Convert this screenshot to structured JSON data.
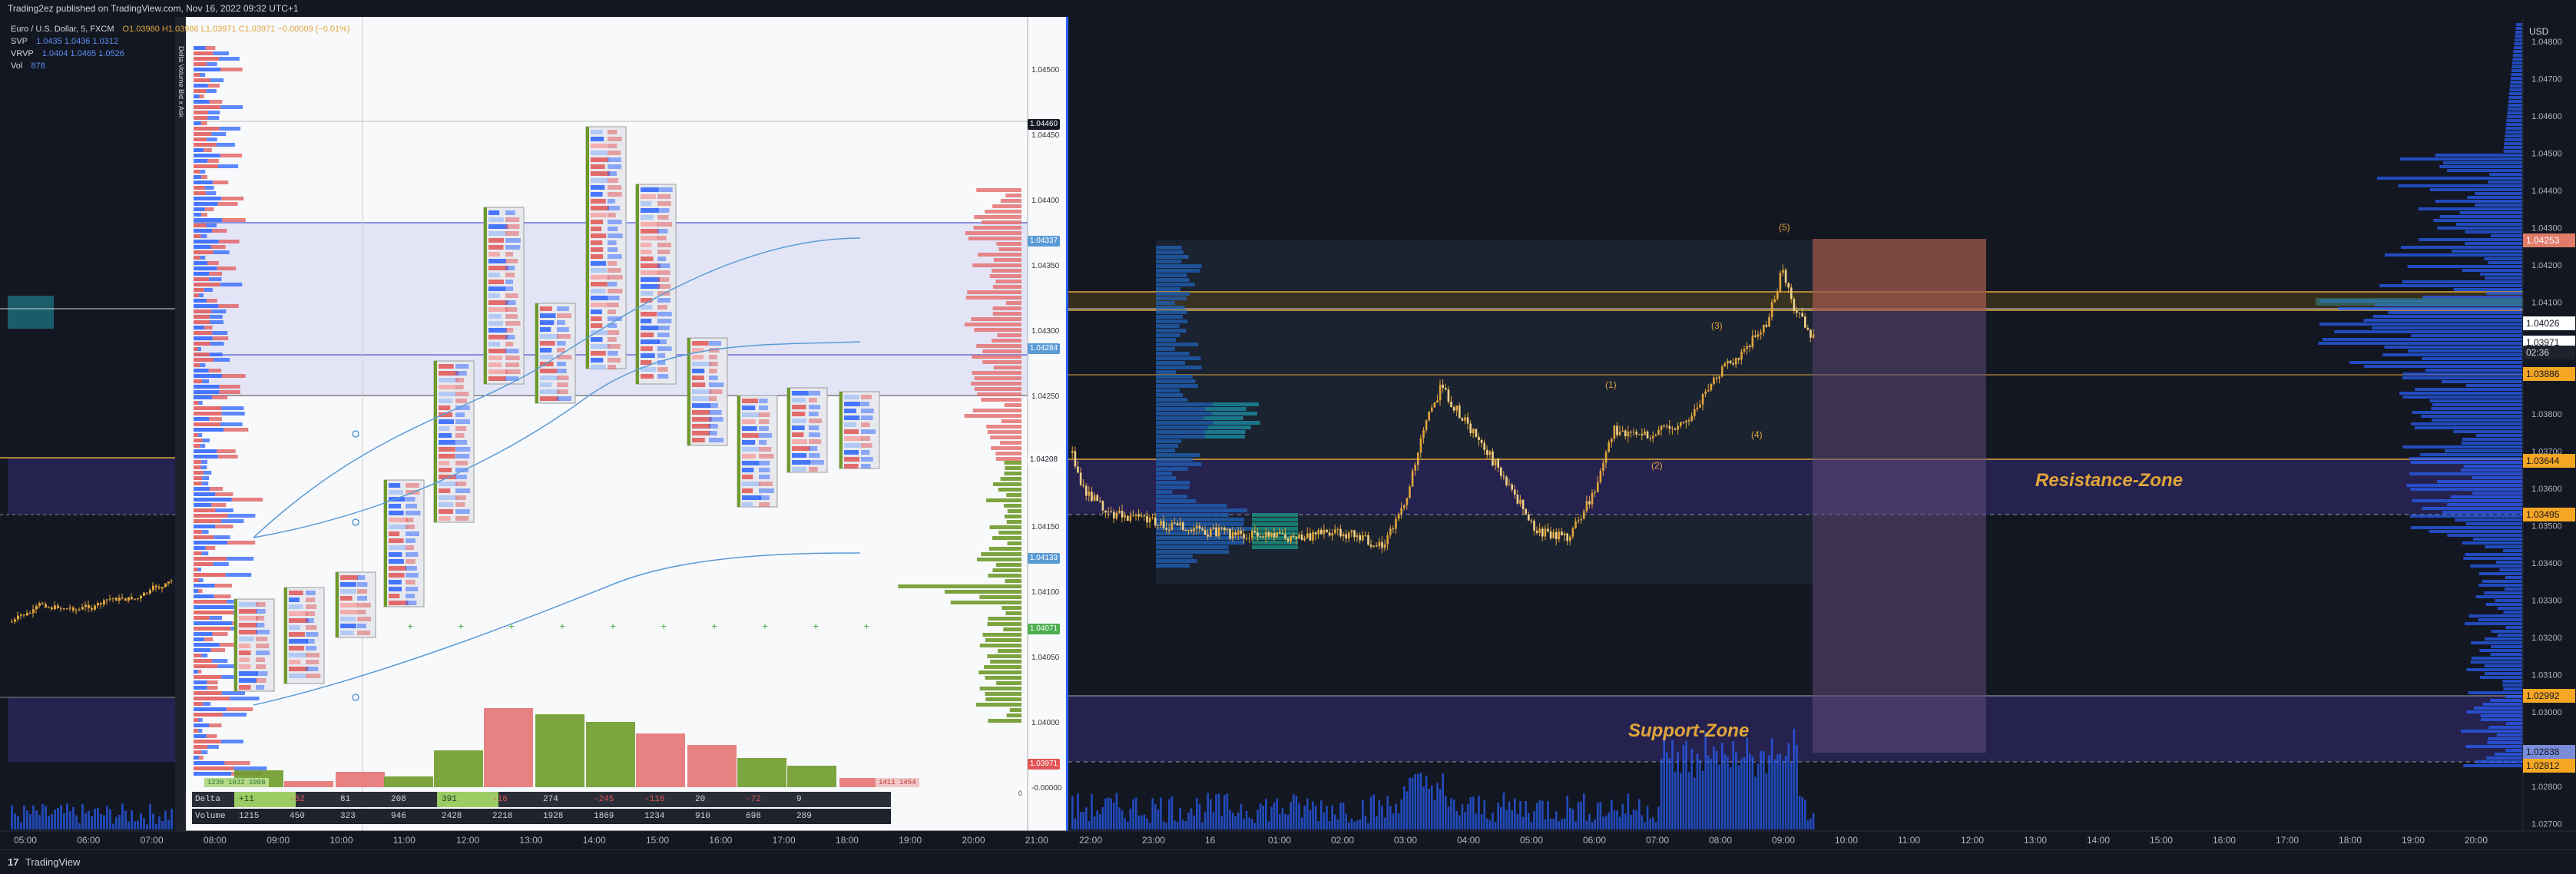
{
  "header": {
    "publish_line": "Trading2ez published on TradingView.com, Nov 16, 2022 09:32 UTC+1"
  },
  "legend": {
    "symbol": "Euro / U.S. Dollar, 5, FXCM",
    "ohlc": "O1.03980  H1.03986  L1.03971  C1.03971  −0.00009 (−0.01%)",
    "svp_label": "SVP",
    "svp_values": "1.0435  1.0436  1.0312",
    "vrvp_label": "VRVP",
    "vrvp_values": "1.0404  1.0465  1.0526",
    "vol_label": "Vol",
    "vol_value": "878"
  },
  "left_time_axis": [
    "05:00",
    "06:00",
    "07:00",
    "08:00",
    "09:00",
    "10:00",
    "11:00",
    "12:00",
    "13:00",
    "14:00",
    "15:00",
    "16:00",
    "17:00",
    "18:00",
    "19:00",
    "20:00",
    "21:00"
  ],
  "right_time_axis": [
    "22:00",
    "23:00",
    "16",
    "01:00",
    "02:00",
    "03:00",
    "04:00",
    "05:00",
    "06:00",
    "07:00",
    "08:00",
    "09:00",
    "10:00",
    "11:00",
    "12:00",
    "13:00",
    "14:00",
    "15:00",
    "16:00",
    "17:00",
    "18:00",
    "19:00",
    "20:00"
  ],
  "left_price_axis": [
    "1.04500",
    "1.04450",
    "1.04400",
    "1.04350",
    "1.04300",
    "1.04250",
    "1.04200",
    "1.04150",
    "1.04100",
    "1.04050",
    "1.04000",
    "-0.00000"
  ],
  "left_price_tags": [
    {
      "label": "1.04460",
      "kind": "black"
    },
    {
      "label": "1.04337",
      "kind": "blue"
    },
    {
      "label": "1.04284",
      "kind": "blue"
    },
    {
      "label": "1.04208",
      "kind": "white"
    },
    {
      "label": "1.04133",
      "kind": "blue"
    },
    {
      "label": "1.04071",
      "kind": "green"
    },
    {
      "label": "1.03971",
      "kind": "red"
    }
  ],
  "right_price_axis": {
    "currency": "USD",
    "ticks": [
      "1.04800",
      "1.04700",
      "1.04600",
      "1.04500",
      "1.04400",
      "1.04300",
      "1.04200",
      "1.04100",
      "1.04000",
      "1.03900",
      "1.03800",
      "1.03700",
      "1.03600",
      "1.03500",
      "1.03400",
      "1.03300",
      "1.03200",
      "1.03100",
      "1.03000",
      "1.02900",
      "1.02800",
      "1.02700"
    ],
    "tags": [
      {
        "label": "1.04253",
        "kind": "salmon"
      },
      {
        "label": "1.04026",
        "kind": "white"
      },
      {
        "label": "1.03971",
        "kind": "white"
      },
      {
        "label": "02:36",
        "kind": "dark"
      },
      {
        "label": "1.03886",
        "kind": "yellow"
      },
      {
        "label": "1.03644",
        "kind": "yellow"
      },
      {
        "label": "1.03495",
        "kind": "yellow"
      },
      {
        "label": "1.02992",
        "kind": "yellow"
      },
      {
        "label": "1.02838",
        "kind": "bluegrey"
      },
      {
        "label": "1.02812",
        "kind": "yellow"
      }
    ]
  },
  "zones": {
    "resistance": "Resistance-Zone",
    "support": "Support-Zone"
  },
  "wave_labels": [
    "(1)",
    "(2)",
    "(3)",
    "(4)",
    "(5)"
  ],
  "delta_table": {
    "delta_label": "Delta",
    "volume_label": "Volume",
    "delta_values": [
      "+11",
      "-52",
      "81",
      "208",
      "391",
      "-16",
      "274",
      "-245",
      "-116",
      "20",
      "-72",
      "9"
    ],
    "volume_values": [
      "1215",
      "450",
      "323",
      "946",
      "2428",
      "2218",
      "1928",
      "1869",
      "1234",
      "910",
      "698",
      "289"
    ],
    "zero_tag": "0"
  },
  "footprint_bottom_labels": {
    "left_box": "1230  1032  1008",
    "right_box": "1411 1454"
  },
  "toolbar_vertical": "Delta  Volume  Bid x Ask",
  "brand": {
    "name": "TradingView",
    "mark": "17"
  },
  "colors": {
    "background": "#131722",
    "left_bg": "#ffffff",
    "zone_purple": "#2a2652",
    "resistance_line": "#e0a63a",
    "candle_up": "#e0a63a",
    "volume_blue": "#2962ff"
  }
}
